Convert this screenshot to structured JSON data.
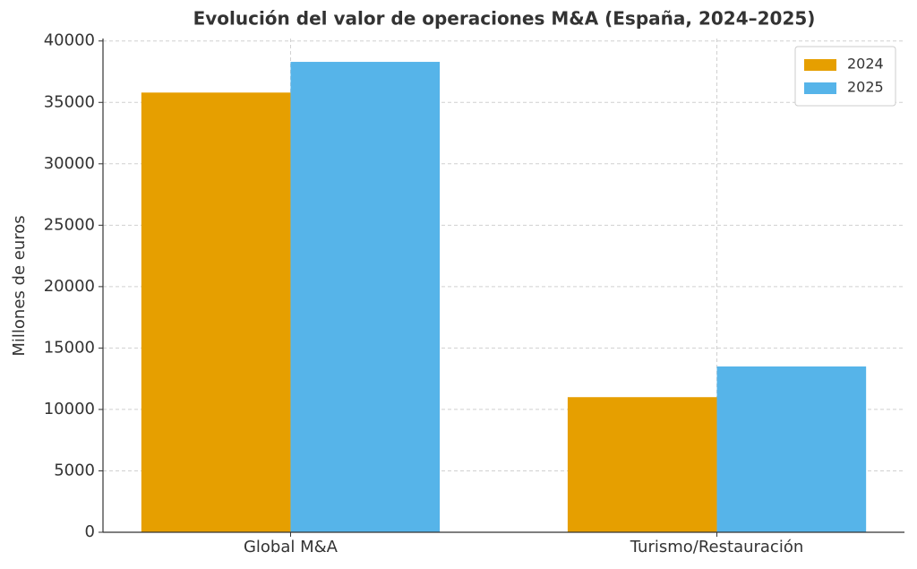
{
  "chart_data": {
    "type": "bar",
    "title": "Evolución del valor de operaciones M&A (España, 2024–2025)",
    "y_label": "Millones de euros",
    "categories": [
      "Global M&A",
      "Turismo/Restauración"
    ],
    "series": [
      {
        "name": "2024",
        "color": "#E69F00",
        "values": [
          35800,
          11000
        ]
      },
      {
        "name": "2025",
        "color": "#56B4E9",
        "values": [
          38300,
          13500
        ]
      }
    ],
    "ylim": [
      0,
      40200
    ],
    "yticks": [
      0,
      5000,
      10000,
      15000,
      20000,
      25000,
      30000,
      35000,
      40000
    ],
    "grid": true,
    "legend": "upper-right"
  }
}
